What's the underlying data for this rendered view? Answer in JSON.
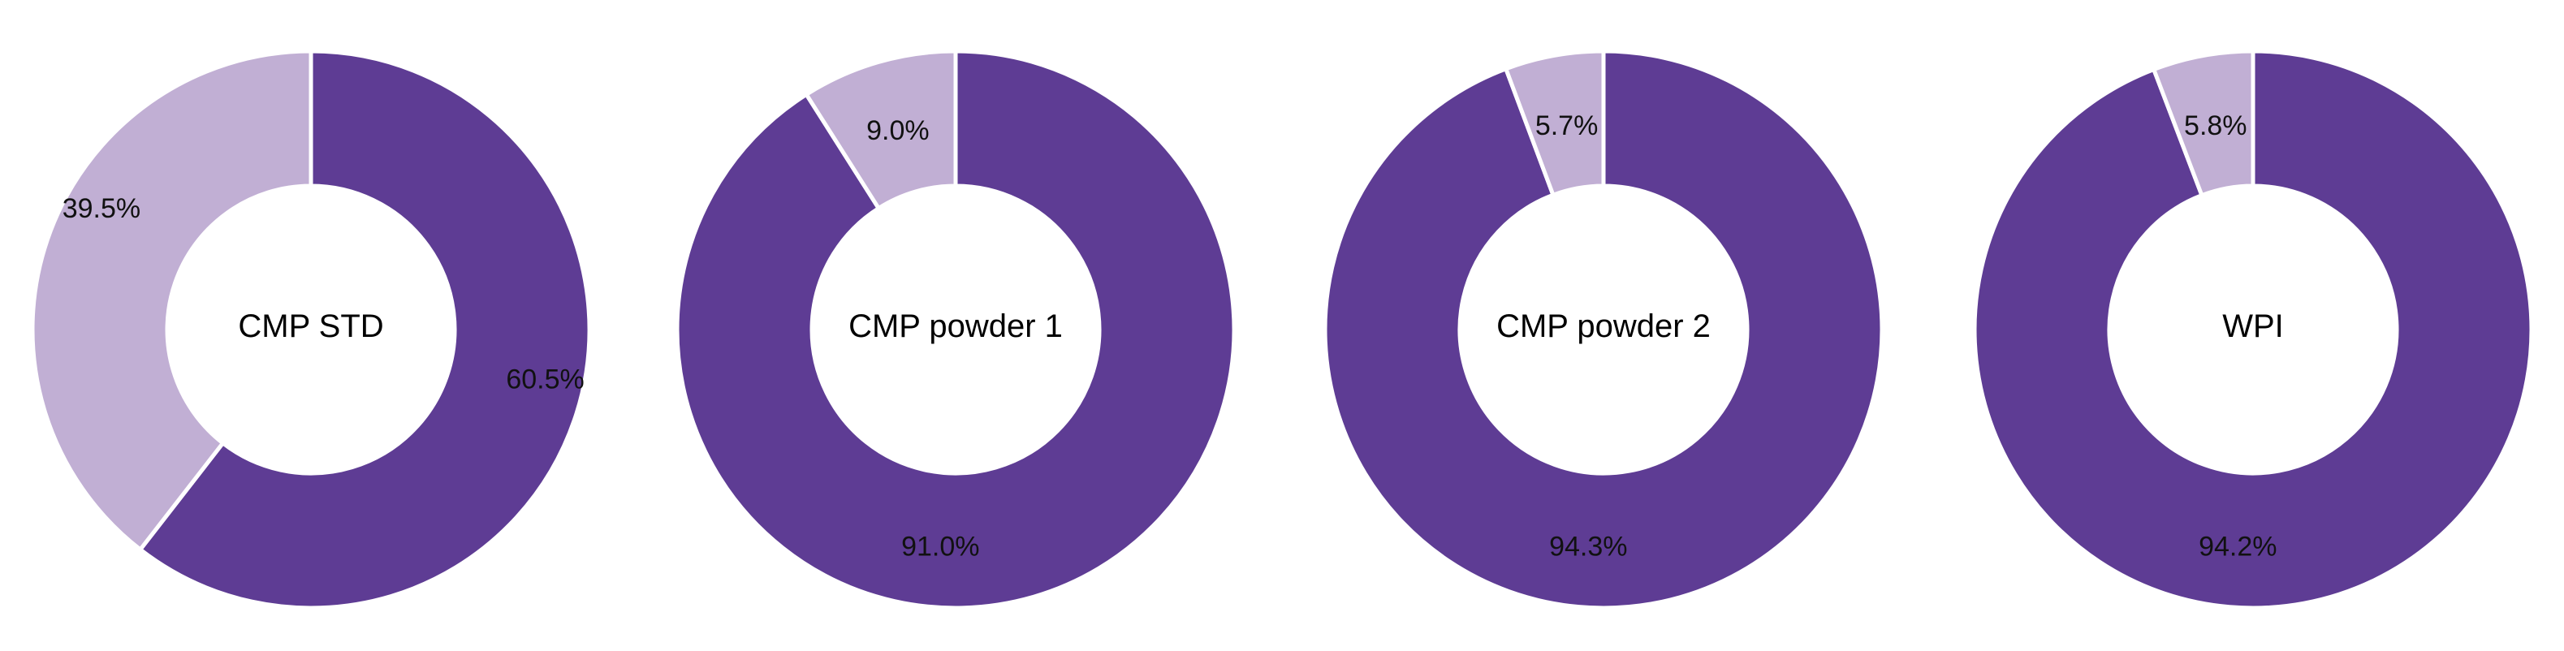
{
  "colors": {
    "major": "#5e3c94",
    "minor": "#c1afd4",
    "separator": "#ffffff"
  },
  "chart_data": [
    {
      "type": "pie",
      "variant": "donut",
      "center_label": "CMP STD",
      "slices": [
        {
          "value": 60.5,
          "label": "60.5%",
          "color": "#5e3c94"
        },
        {
          "value": 39.5,
          "label": "39.5%",
          "color": "#c1afd4"
        }
      ]
    },
    {
      "type": "pie",
      "variant": "donut",
      "center_label": "CMP powder 1",
      "slices": [
        {
          "value": 91.0,
          "label": "91.0%",
          "color": "#5e3c94"
        },
        {
          "value": 9.0,
          "label": "9.0%",
          "color": "#c1afd4"
        }
      ]
    },
    {
      "type": "pie",
      "variant": "donut",
      "center_label": "CMP powder 2",
      "slices": [
        {
          "value": 94.3,
          "label": "94.3%",
          "color": "#5e3c94"
        },
        {
          "value": 5.7,
          "label": "5.7%",
          "color": "#c1afd4"
        }
      ]
    },
    {
      "type": "pie",
      "variant": "donut",
      "center_label": "WPI",
      "slices": [
        {
          "value": 94.2,
          "label": "94.2%",
          "color": "#5e3c94"
        },
        {
          "value": 5.8,
          "label": "5.8%",
          "color": "#c1afd4"
        }
      ]
    }
  ]
}
